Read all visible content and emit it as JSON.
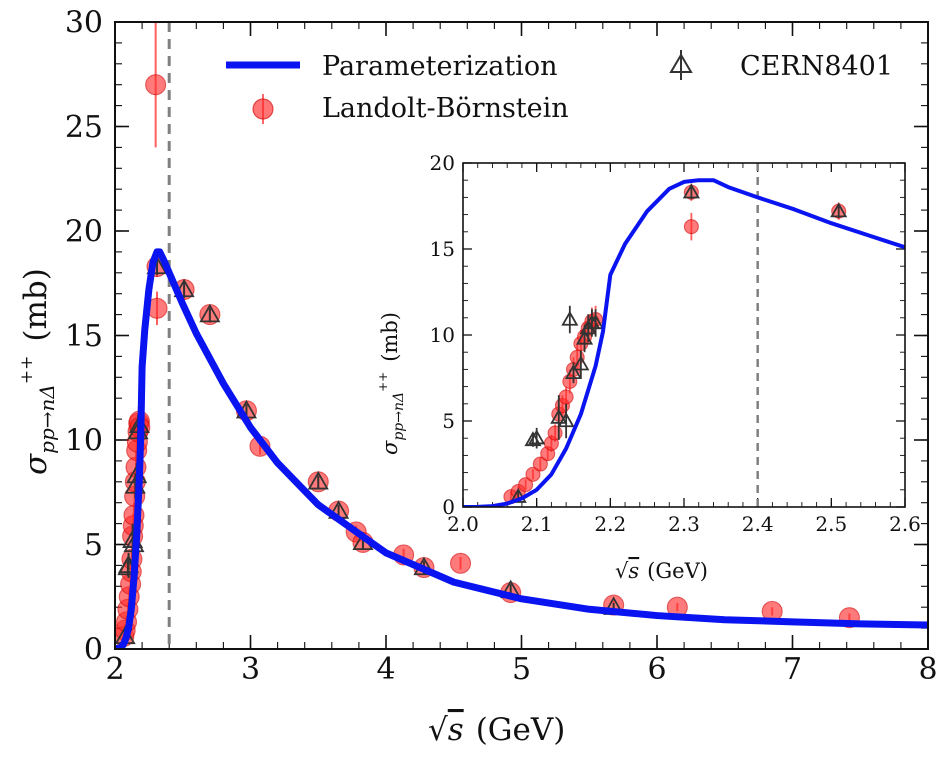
{
  "chart_data": [
    {
      "id": "main",
      "type": "scatter+line",
      "xlabel_base": "s",
      "xlabel_unit": "(GeV)",
      "ylabel_base": "σ",
      "ylabel_sub": "pp→nΔ",
      "ylabel_sup": "++",
      "ylabel_unit": "(mb)",
      "xlim": [
        2,
        8
      ],
      "ylim": [
        0,
        30
      ],
      "xticks": [
        2,
        3,
        4,
        5,
        6,
        7,
        8
      ],
      "yticks": [
        0,
        5,
        10,
        15,
        20,
        25,
        30
      ],
      "xminor": 0.2,
      "yminor": 1,
      "vline": 2.4,
      "legend": {
        "position": "top",
        "entries": [
          "Parameterization",
          "Landolt-Börnstein",
          "CERN8401"
        ]
      },
      "series": [
        {
          "name": "Parameterization",
          "kind": "line",
          "color": "#0a14f0",
          "x": [
            2.0,
            2.04,
            2.06,
            2.08,
            2.1,
            2.12,
            2.14,
            2.16,
            2.18,
            2.19,
            2.2,
            2.22,
            2.25,
            2.28,
            2.31,
            2.33,
            2.36,
            2.4,
            2.5,
            2.6,
            2.8,
            3.0,
            3.2,
            3.5,
            4.0,
            4.5,
            5.0,
            5.5,
            6.0,
            6.5,
            7.0,
            7.5,
            8.0
          ],
          "y": [
            0.0,
            0.05,
            0.2,
            0.5,
            1.0,
            1.9,
            3.4,
            5.4,
            8.2,
            10.2,
            13.5,
            15.3,
            17.2,
            18.5,
            19.0,
            19.0,
            18.6,
            18.0,
            16.5,
            15.1,
            12.7,
            10.6,
            8.9,
            6.9,
            4.6,
            3.2,
            2.4,
            1.9,
            1.6,
            1.4,
            1.3,
            1.2,
            1.15
          ]
        },
        {
          "name": "Landolt-Börnstein",
          "kind": "points",
          "color": "#ff2a2a",
          "x": [
            2.065,
            2.075,
            2.085,
            2.095,
            2.105,
            2.115,
            2.12,
            2.125,
            2.13,
            2.135,
            2.14,
            2.145,
            2.15,
            2.155,
            2.16,
            2.165,
            2.17,
            2.175,
            2.18,
            2.183,
            2.3,
            2.31,
            2.31,
            2.51,
            2.7,
            2.97,
            3.07,
            3.5,
            3.65,
            3.78,
            3.83,
            4.13,
            4.28,
            4.55,
            4.92,
            5.68,
            6.15,
            6.85,
            7.42
          ],
          "y": [
            0.6,
            0.9,
            1.3,
            1.9,
            2.5,
            3.1,
            3.7,
            4.3,
            5.4,
            5.9,
            6.4,
            7.3,
            8.0,
            8.7,
            9.5,
            9.9,
            10.4,
            10.8,
            10.9,
            10.6,
            27.0,
            18.3,
            16.3,
            17.2,
            16.0,
            11.4,
            9.7,
            8.0,
            6.6,
            5.6,
            5.1,
            4.5,
            3.9,
            4.1,
            2.7,
            2.1,
            2.0,
            1.8,
            1.5
          ],
          "yerr": [
            0.3,
            0.3,
            0.3,
            0.3,
            0.4,
            0.4,
            0.5,
            0.5,
            0.6,
            0.6,
            0.6,
            0.7,
            0.7,
            0.8,
            0.8,
            0.8,
            0.8,
            0.8,
            0.8,
            0.8,
            3.0,
            0.5,
            0.8,
            0.5,
            0.4,
            0.4,
            0.4,
            0.3,
            0.3,
            0.3,
            0.3,
            0.3,
            0.3,
            0.3,
            0.2,
            0.2,
            0.2,
            0.2,
            0.2
          ]
        },
        {
          "name": "CERN8401",
          "kind": "triangles",
          "color": "#333333",
          "x": [
            2.075,
            2.095,
            2.1,
            2.13,
            2.14,
            2.15,
            2.16,
            2.17,
            2.18,
            2.31,
            2.51,
            2.7,
            2.97,
            3.5,
            3.65,
            3.83,
            4.28,
            4.92,
            5.68
          ],
          "y": [
            0.6,
            3.9,
            4.0,
            5.2,
            5.0,
            7.8,
            8.3,
            10.4,
            10.7,
            18.3,
            17.2,
            16.0,
            11.4,
            8.0,
            6.6,
            5.1,
            3.9,
            2.8,
            2.0
          ],
          "yerr": [
            0.3,
            0.4,
            0.6,
            0.8,
            0.8,
            0.6,
            0.6,
            0.8,
            0.8,
            0.4,
            0.4,
            0.3,
            0.3,
            0.3,
            0.3,
            0.3,
            0.3,
            0.3,
            0.2
          ]
        }
      ]
    },
    {
      "id": "inset",
      "type": "scatter+line",
      "xlabel_base": "s",
      "xlabel_unit": "(GeV)",
      "ylabel_base": "σ",
      "ylabel_sub": "pp→nΔ",
      "ylabel_sup": "++",
      "ylabel_unit": "(mb)",
      "xlim": [
        2.0,
        2.6
      ],
      "ylim": [
        0,
        20
      ],
      "xticks": [
        2.0,
        2.1,
        2.2,
        2.3,
        2.4,
        2.5,
        2.6
      ],
      "yticks": [
        0,
        5,
        10,
        15,
        20
      ],
      "xminor": 0.02,
      "yminor": 1,
      "vline": 2.4,
      "series": [
        {
          "name": "Parameterization",
          "kind": "line",
          "color": "#0a14f0",
          "x": [
            2.0,
            2.02,
            2.04,
            2.06,
            2.08,
            2.1,
            2.12,
            2.14,
            2.16,
            2.18,
            2.19,
            2.2,
            2.22,
            2.25,
            2.28,
            2.3,
            2.32,
            2.34,
            2.36,
            2.4,
            2.45,
            2.5,
            2.55,
            2.6
          ],
          "y": [
            0.0,
            0.01,
            0.05,
            0.2,
            0.5,
            1.0,
            1.9,
            3.4,
            5.4,
            8.2,
            10.2,
            13.5,
            15.3,
            17.2,
            18.5,
            18.9,
            19.0,
            19.0,
            18.6,
            18.0,
            17.3,
            16.5,
            15.8,
            15.1
          ]
        },
        {
          "name": "Landolt-Börnstein",
          "kind": "points",
          "color": "#ff2a2a",
          "x": [
            2.065,
            2.075,
            2.085,
            2.095,
            2.105,
            2.115,
            2.12,
            2.125,
            2.13,
            2.135,
            2.14,
            2.145,
            2.15,
            2.155,
            2.16,
            2.165,
            2.17,
            2.175,
            2.18,
            2.31,
            2.31,
            2.51
          ],
          "y": [
            0.6,
            0.9,
            1.3,
            1.9,
            2.5,
            3.1,
            3.7,
            4.3,
            5.4,
            5.9,
            6.4,
            7.3,
            8.0,
            8.7,
            9.5,
            9.9,
            10.4,
            10.8,
            10.9,
            18.3,
            16.3,
            17.2
          ],
          "yerr": [
            0.3,
            0.3,
            0.3,
            0.3,
            0.4,
            0.4,
            0.5,
            0.5,
            0.6,
            0.6,
            0.6,
            0.7,
            0.7,
            0.8,
            0.8,
            0.8,
            0.8,
            0.8,
            0.8,
            0.5,
            0.8,
            0.5
          ]
        },
        {
          "name": "CERN8401",
          "kind": "triangles",
          "color": "#333333",
          "x": [
            2.075,
            2.095,
            2.1,
            2.13,
            2.14,
            2.145,
            2.15,
            2.16,
            2.165,
            2.17,
            2.175,
            2.18,
            2.31,
            2.51
          ],
          "y": [
            0.6,
            3.9,
            4.0,
            5.2,
            5.0,
            10.9,
            7.8,
            8.3,
            9.8,
            10.4,
            10.7,
            10.7,
            18.3,
            17.2
          ],
          "yerr": [
            0.3,
            0.4,
            0.6,
            1.3,
            1.0,
            0.8,
            0.6,
            0.8,
            0.8,
            0.8,
            0.8,
            0.8,
            0.4,
            0.4
          ]
        }
      ]
    }
  ]
}
